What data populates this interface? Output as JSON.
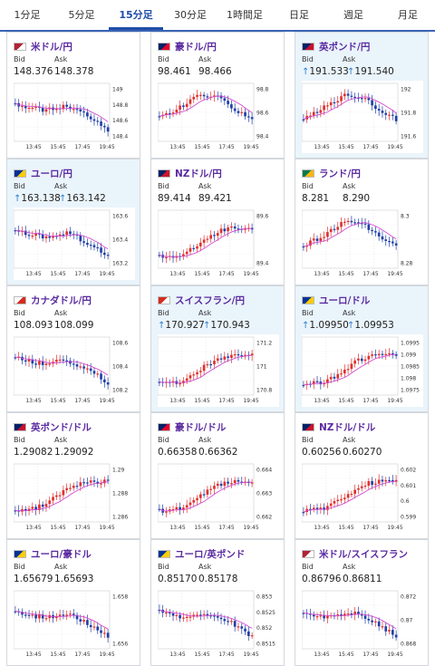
{
  "tabs": [
    {
      "label": "1分足"
    },
    {
      "label": "5分足"
    },
    {
      "label": "15分足",
      "active": true
    },
    {
      "label": "30分足"
    },
    {
      "label": "1時間足"
    },
    {
      "label": "日足"
    },
    {
      "label": "週足"
    },
    {
      "label": "月足"
    }
  ],
  "labels": {
    "bid": "Bid",
    "ask": "Ask"
  },
  "colors": {
    "pair_text": "#5a2aa0",
    "up_arrow": "#2f7fcf",
    "candle_up": "#e0302e",
    "candle_down": "#1f3fa8",
    "ma_line": "#d14bd1",
    "highlight_bg": "#eaf4fb",
    "tab_active": "#1f4ea8"
  },
  "time_labels": [
    "13:45",
    "15:45",
    "17:45",
    "19:45"
  ],
  "cards": [
    {
      "pair": "米ドル/円",
      "flag": "us-jp-flag-icon",
      "bid": "148.376",
      "ask": "148.378",
      "bid_up": false,
      "ask_up": false,
      "highlight": false,
      "y_ticks": [
        "149",
        "148.8",
        "148.6",
        "148.4"
      ],
      "trend": "down"
    },
    {
      "pair": "豪ドル/円",
      "flag": "au-jp-flag-icon",
      "bid": "98.461",
      "ask": "98.466",
      "bid_up": false,
      "ask_up": false,
      "highlight": false,
      "y_ticks": [
        "98.8",
        "98.6",
        "98.4"
      ],
      "trend": "peak"
    },
    {
      "pair": "英ポンド/円",
      "flag": "gb-jp-flag-icon",
      "bid": "191.533",
      "ask": "191.540",
      "bid_up": true,
      "ask_up": true,
      "highlight": true,
      "y_ticks": [
        "192",
        "191.8",
        "191.6"
      ],
      "trend": "peak"
    },
    {
      "pair": "ユーロ/円",
      "flag": "eu-jp-flag-icon",
      "bid": "163.138",
      "ask": "163.142",
      "bid_up": true,
      "ask_up": true,
      "highlight": true,
      "y_ticks": [
        "163.6",
        "163.4",
        "163.2"
      ],
      "trend": "down"
    },
    {
      "pair": "NZドル/円",
      "flag": "nz-jp-flag-icon",
      "bid": "89.414",
      "ask": "89.421",
      "bid_up": false,
      "ask_up": false,
      "highlight": false,
      "y_ticks": [
        "89.6",
        "89.4"
      ],
      "trend": "up"
    },
    {
      "pair": "ランド/円",
      "flag": "za-jp-flag-icon",
      "bid": "8.281",
      "ask": "8.290",
      "bid_up": false,
      "ask_up": false,
      "highlight": false,
      "y_ticks": [
        "8.3",
        "8.28"
      ],
      "trend": "peak"
    },
    {
      "pair": "カナダドル/円",
      "flag": "ca-jp-flag-icon",
      "bid": "108.093",
      "ask": "108.099",
      "bid_up": false,
      "ask_up": false,
      "highlight": false,
      "y_ticks": [
        "108.6",
        "108.4",
        "108.2"
      ],
      "trend": "down"
    },
    {
      "pair": "スイスフラン/円",
      "flag": "ch-jp-flag-icon",
      "bid": "170.927",
      "ask": "170.943",
      "bid_up": true,
      "ask_up": true,
      "highlight": true,
      "y_ticks": [
        "171.2",
        "171",
        "170.8"
      ],
      "trend": "up"
    },
    {
      "pair": "ユーロ/ドル",
      "flag": "eu-us-flag-icon",
      "bid": "1.09950",
      "ask": "1.09953",
      "bid_up": true,
      "ask_up": true,
      "highlight": true,
      "y_ticks": [
        "1.0995",
        "1.099",
        "1.0985",
        "1.098",
        "1.0975"
      ],
      "trend": "up"
    },
    {
      "pair": "英ポンド/ドル",
      "flag": "gb-us-flag-icon",
      "bid": "1.29082",
      "ask": "1.29092",
      "bid_up": false,
      "ask_up": false,
      "highlight": false,
      "y_ticks": [
        "1.29",
        "1.288",
        "1.286"
      ],
      "trend": "up"
    },
    {
      "pair": "豪ドル/ドル",
      "flag": "au-us-flag-icon",
      "bid": "0.66358",
      "ask": "0.66362",
      "bid_up": false,
      "ask_up": false,
      "highlight": false,
      "y_ticks": [
        "0.664",
        "0.663",
        "0.662"
      ],
      "trend": "up"
    },
    {
      "pair": "NZドル/ドル",
      "flag": "nz-us-flag-icon",
      "bid": "0.60256",
      "ask": "0.60270",
      "bid_up": false,
      "ask_up": false,
      "highlight": false,
      "y_ticks": [
        "0.602",
        "0.601",
        "0.6",
        "0.599"
      ],
      "trend": "up"
    },
    {
      "pair": "ユーロ/豪ドル",
      "flag": "eu-au-flag-icon",
      "bid": "1.65679",
      "ask": "1.65693",
      "bid_up": false,
      "ask_up": false,
      "highlight": false,
      "y_ticks": [
        "1.658",
        "1.656"
      ],
      "trend": "down"
    },
    {
      "pair": "ユーロ/英ポンド",
      "flag": "eu-gb-flag-icon",
      "bid": "0.85170",
      "ask": "0.85178",
      "bid_up": false,
      "ask_up": false,
      "highlight": false,
      "y_ticks": [
        "0.853",
        "0.8525",
        "0.852",
        "0.8515"
      ],
      "trend": "down"
    },
    {
      "pair": "米ドル/スイスフラン",
      "flag": "us-ch-flag-icon",
      "bid": "0.86796",
      "ask": "0.86811",
      "bid_up": false,
      "ask_up": false,
      "highlight": false,
      "y_ticks": [
        "0.872",
        "0.87",
        "0.868"
      ],
      "trend": "down"
    }
  ]
}
